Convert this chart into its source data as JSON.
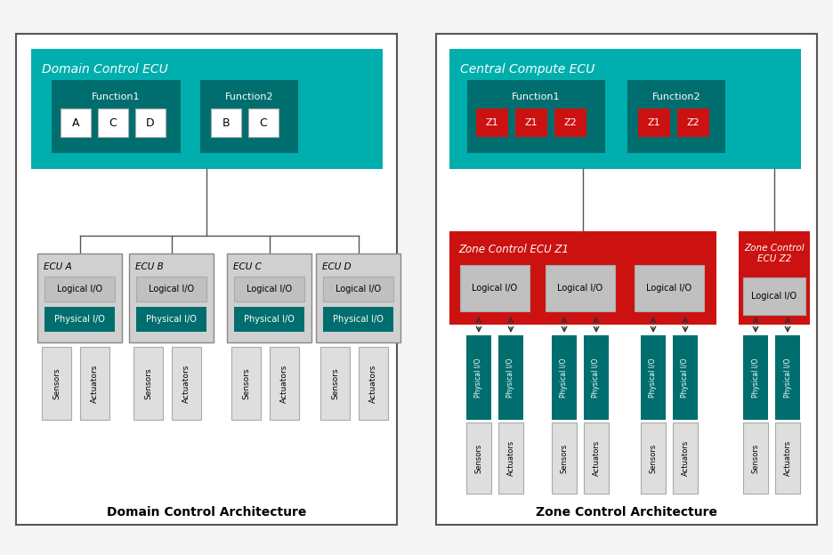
{
  "bg_color": "#f5f5f5",
  "panel_bg": "#ffffff",
  "panel_border": "#555555",
  "teal_color": "#00AEAE",
  "teal_dark": "#006E6E",
  "red_color": "#CC1111",
  "gray_ecu": "#D0D0D0",
  "gray_io": "#C0C0C0",
  "gray_sensor": "#DEDEDE",
  "white_color": "#FFFFFF",
  "physical_io_color": "#006E6E",
  "left_title": "Domain Control Architecture",
  "right_title": "Zone Control Architecture",
  "left_ecu_title": "Domain Control ECU",
  "right_ecu_title": "Central Compute ECU",
  "zone1_title": "Zone Control ECU Z1",
  "zone2_title": "Zone Control\nECU Z2",
  "left_ecus": [
    "ECU A",
    "ECU B",
    "ECU C",
    "ECU D"
  ],
  "func1_items_left": [
    "A",
    "C",
    "D"
  ],
  "func2_items_left": [
    "B",
    "C"
  ],
  "func1_items_right": [
    "Z1",
    "Z1",
    "Z2"
  ],
  "func2_items_right": [
    "Z1",
    "Z2"
  ]
}
